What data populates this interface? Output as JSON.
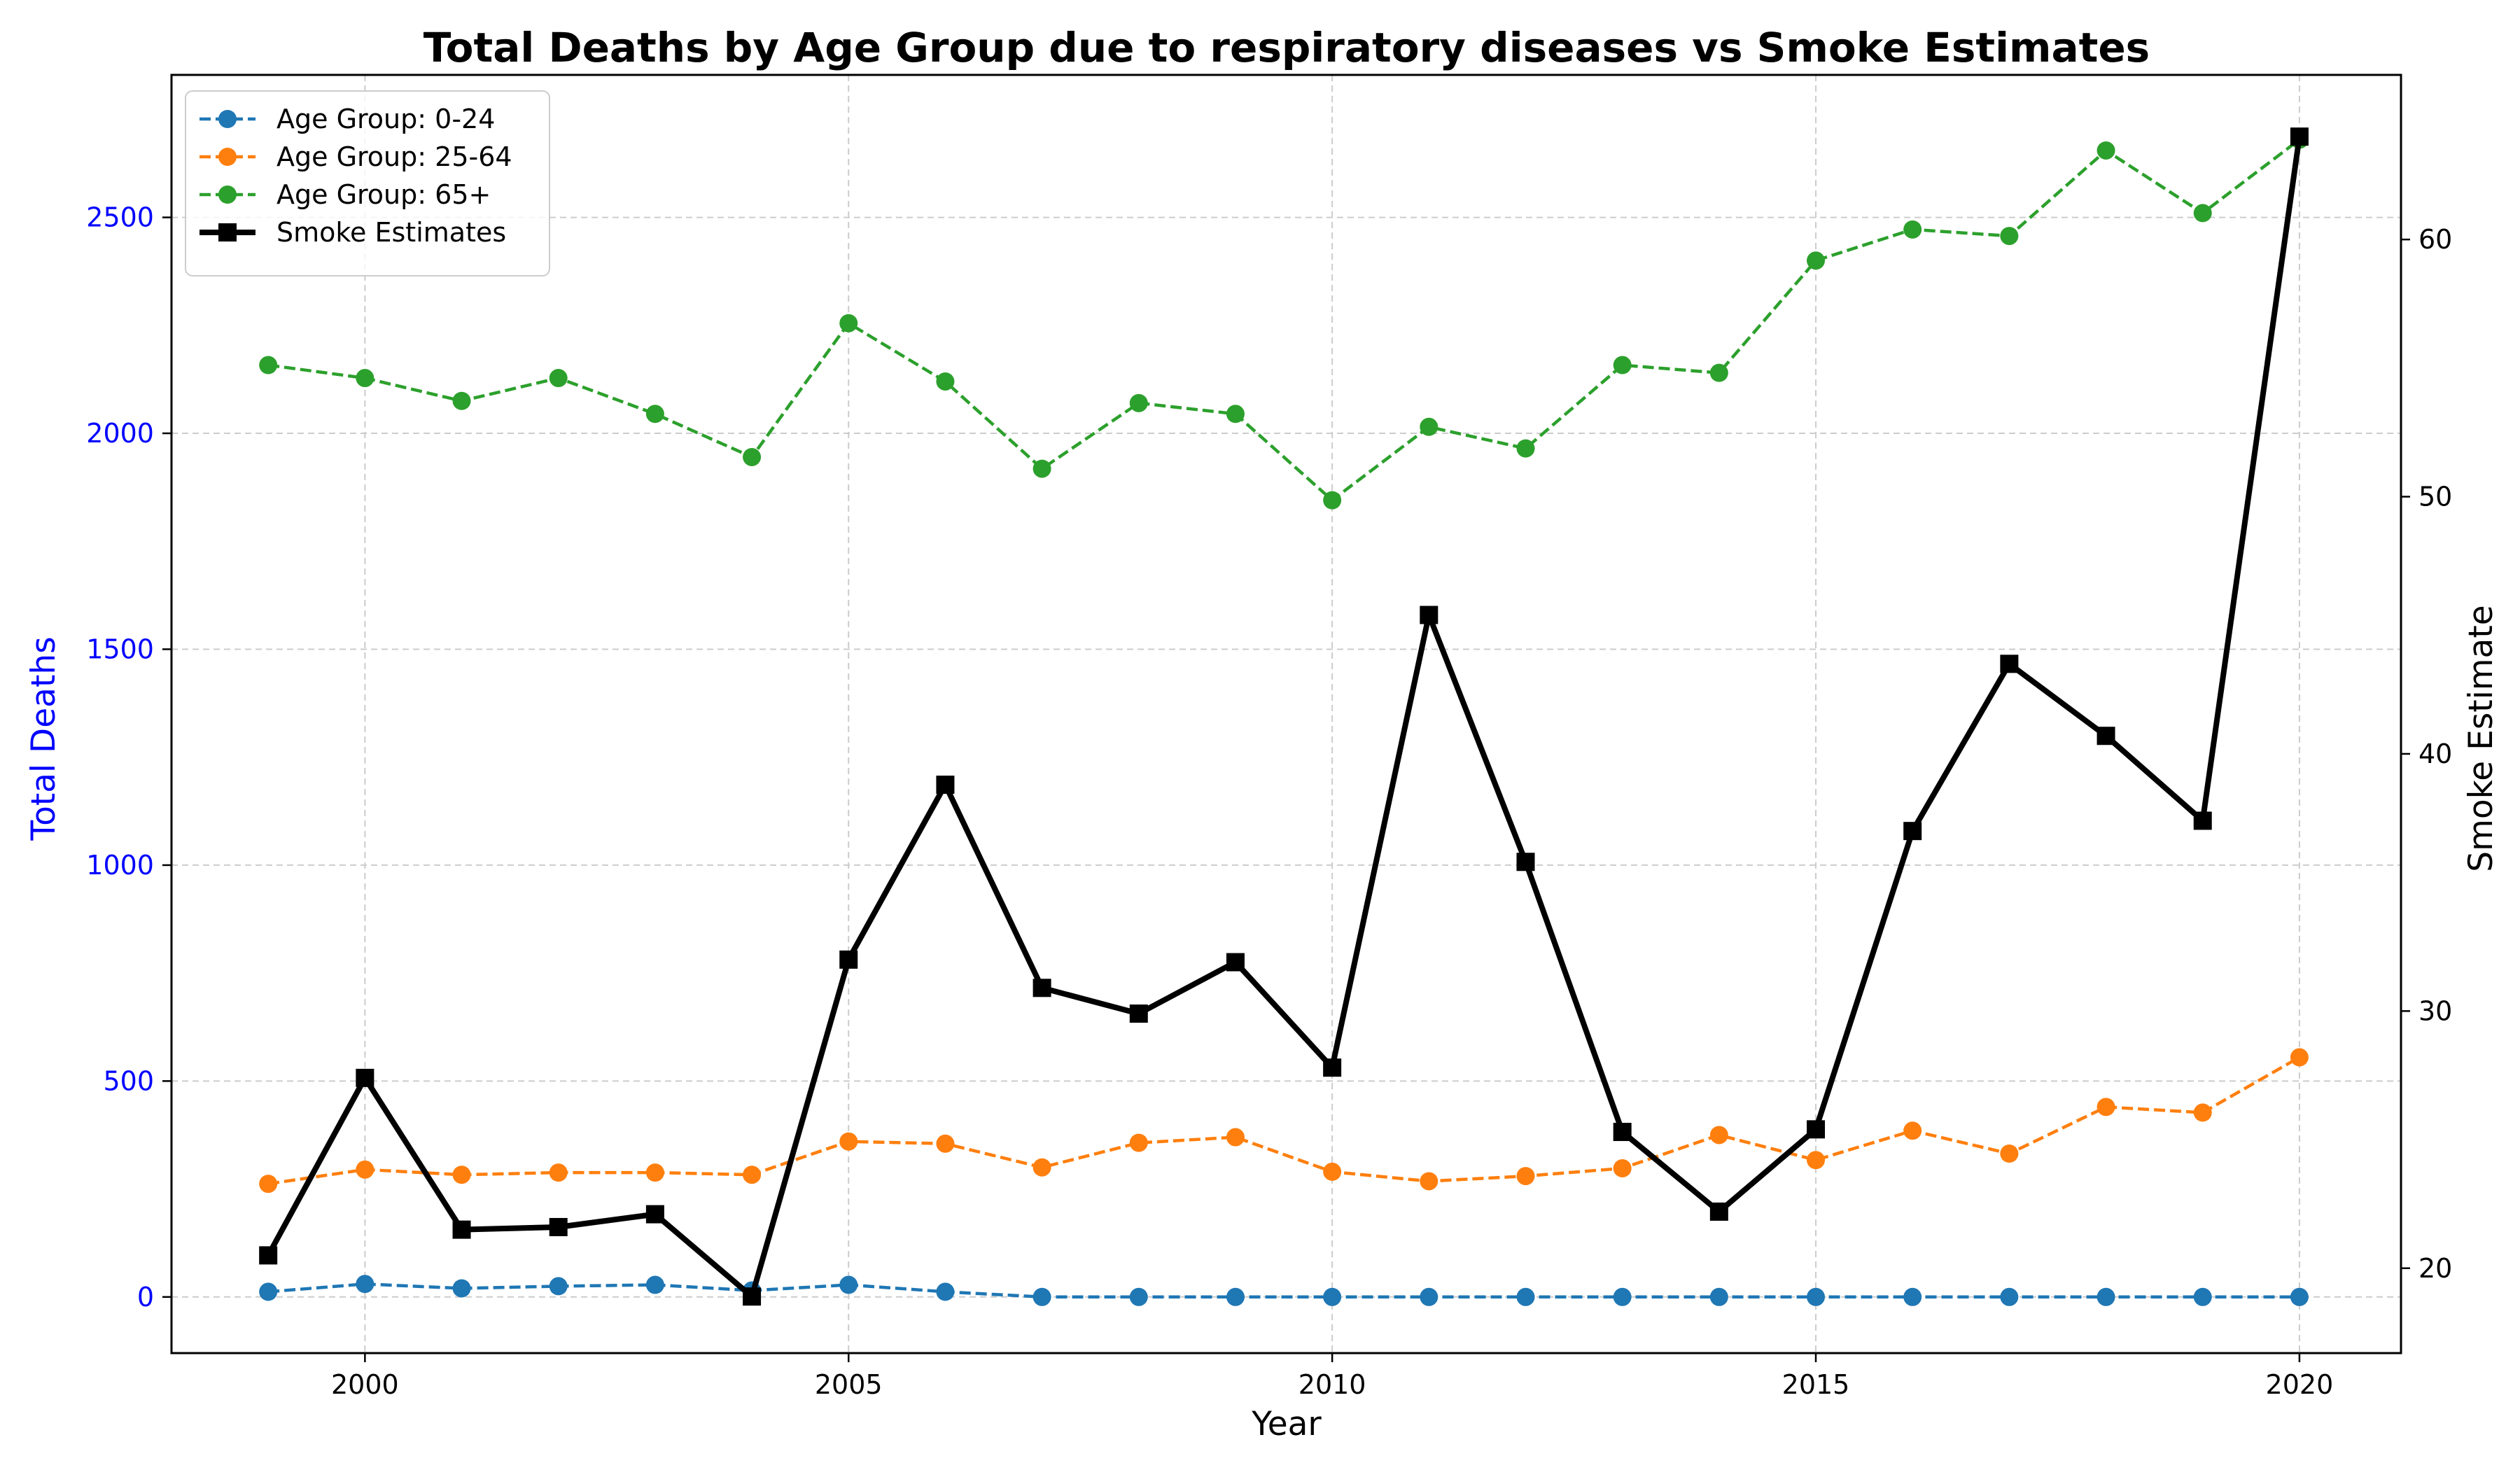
{
  "chart_data": {
    "type": "line",
    "title": "Total Deaths by Age Group due to respiratory diseases vs Smoke Estimates",
    "xlabel": "Year",
    "ylabel": "Total Deaths",
    "ylabel_right": "Smoke Estimate",
    "xlim": [
      1998.0,
      2021.05
    ],
    "ylim": [
      -130,
      2830
    ],
    "ylim_right": [
      16.7,
      66.4
    ],
    "x_ticks": [
      2000,
      2005,
      2010,
      2015,
      2020
    ],
    "y_ticks": [
      0,
      500,
      1000,
      1500,
      2000,
      2500
    ],
    "y_ticks_right": [
      20,
      30,
      40,
      50,
      60
    ],
    "grid": true,
    "legend_position": "top-left",
    "colors": {
      "left_axis_text": "#0000ff",
      "grid": "#cccccc"
    },
    "x": [
      1999,
      2000,
      2001,
      2002,
      2003,
      2004,
      2005,
      2006,
      2007,
      2008,
      2009,
      2010,
      2011,
      2012,
      2013,
      2014,
      2015,
      2016,
      2017,
      2018,
      2019,
      2020
    ],
    "series": [
      {
        "name": "Age Group: 0-24",
        "axis": "left",
        "color": "#1f77b4",
        "line_style": "dashed",
        "marker": "circle",
        "values": [
          12,
          30,
          20,
          25,
          28,
          15,
          28,
          12,
          0,
          0,
          0,
          0,
          0,
          0,
          0,
          0,
          0,
          0,
          0,
          0,
          0,
          0
        ]
      },
      {
        "name": "Age Group: 25-64",
        "axis": "left",
        "color": "#ff7f0e",
        "line_style": "dashed",
        "marker": "circle",
        "values": [
          262,
          295,
          283,
          288,
          288,
          283,
          360,
          355,
          300,
          357,
          370,
          290,
          268,
          280,
          298,
          375,
          317,
          385,
          332,
          440,
          427,
          555
        ]
      },
      {
        "name": "Age Group: 65+",
        "axis": "left",
        "color": "#2ca02c",
        "line_style": "dashed",
        "marker": "circle",
        "values": [
          2158,
          2128,
          2075,
          2128,
          2045,
          1945,
          2255,
          2120,
          1918,
          2070,
          2045,
          1845,
          2015,
          1965,
          2158,
          2140,
          2400,
          2472,
          2457,
          2655,
          2510,
          2680
        ]
      },
      {
        "name": "Smoke Estimates",
        "axis": "right",
        "color": "#000000",
        "line_style": "solid",
        "marker": "square",
        "values": [
          20.5,
          27.4,
          21.5,
          21.6,
          22.1,
          18.9,
          32.0,
          38.8,
          30.9,
          29.9,
          31.9,
          27.8,
          45.4,
          35.8,
          25.3,
          22.2,
          25.4,
          37.0,
          43.5,
          40.7,
          37.4,
          64.0
        ]
      }
    ]
  }
}
